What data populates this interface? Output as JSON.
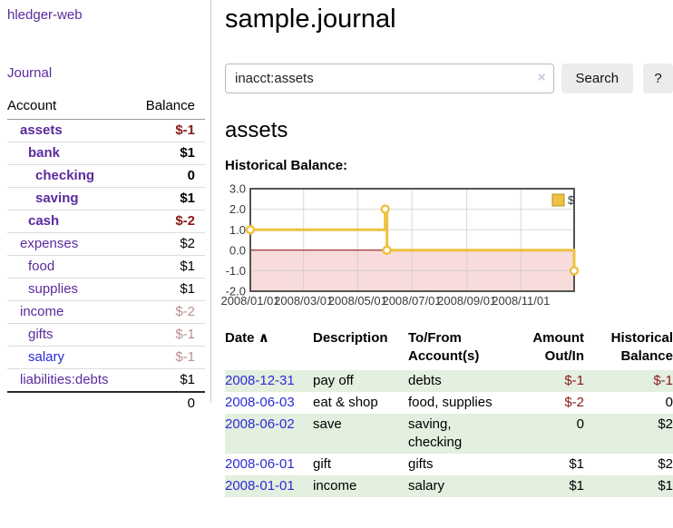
{
  "app": {
    "title": "hledger-web",
    "nav_journal": "Journal"
  },
  "sidebar": {
    "columns": {
      "account": "Account",
      "balance": "Balance"
    },
    "accounts": [
      {
        "name": "assets",
        "balance": "$-1",
        "level": 1,
        "bold": true
      },
      {
        "name": "bank",
        "balance": "$1",
        "level": 2,
        "bold": true
      },
      {
        "name": "checking",
        "balance": "0",
        "level": 3,
        "bold": true
      },
      {
        "name": "saving",
        "balance": "$1",
        "level": 3,
        "bold": true
      },
      {
        "name": "cash",
        "balance": "$-2",
        "level": 2,
        "bold": true
      },
      {
        "name": "expenses",
        "balance": "$2",
        "level": 1,
        "bold": false
      },
      {
        "name": "food",
        "balance": "$1",
        "level": 2,
        "bold": false
      },
      {
        "name": "supplies",
        "balance": "$1",
        "level": 2,
        "bold": false
      },
      {
        "name": "income",
        "balance": "$-2",
        "level": 1,
        "bold": false
      },
      {
        "name": "gifts",
        "balance": "$-1",
        "level": 2,
        "bold": false
      },
      {
        "name": "salary",
        "balance": "$-1",
        "level": 2,
        "bold": false,
        "link_color": "blue"
      },
      {
        "name": "liabilities:debts",
        "balance": "$1",
        "level": 1,
        "bold": false
      }
    ],
    "total": "0"
  },
  "header": {
    "title": "sample.journal"
  },
  "search": {
    "query": "inacct:assets",
    "clear_icon": "×",
    "button": "Search",
    "help_button": "?"
  },
  "account_page": {
    "title": "assets",
    "chart_label": "Historical Balance:"
  },
  "chart_data": {
    "type": "line",
    "step": true,
    "title": "Historical Balance",
    "xlim": [
      "2008-01-01",
      "2008-12-31"
    ],
    "ylim": [
      -2,
      3
    ],
    "x_ticks": [
      "2008/01/01",
      "2008/03/01",
      "2008/05/01",
      "2008/07/01",
      "2008/09/01",
      "2008/11/01"
    ],
    "y_ticks": [
      "3.0",
      "2.0",
      "1.0",
      "0.0",
      "-1.0",
      "-2.0"
    ],
    "series": [
      {
        "name": "$",
        "color": "#edc240",
        "points": [
          [
            "2008-01-01",
            1
          ],
          [
            "2008-06-01",
            2
          ],
          [
            "2008-06-03",
            0
          ],
          [
            "2008-12-31",
            -1
          ]
        ]
      }
    ],
    "legend_position": "top-right",
    "grid": true,
    "negative_region_fill": "#f8dbdb",
    "zero_line_color": "#8b0000"
  },
  "register": {
    "columns": {
      "date": "Date",
      "description": "Description",
      "accounts": "To/From Account(s)",
      "amount": "Amount Out/In",
      "balance": "Historical Balance"
    },
    "sort_indicator": "∧",
    "rows": [
      {
        "date": "2008-12-31",
        "description": "pay off",
        "accounts": "debts",
        "amount": "$-1",
        "balance": "$-1"
      },
      {
        "date": "2008-06-03",
        "description": "eat & shop",
        "accounts": "food, supplies",
        "amount": "$-2",
        "balance": "0"
      },
      {
        "date": "2008-06-02",
        "description": "save",
        "accounts": "saving, checking",
        "amount": "0",
        "balance": "$2"
      },
      {
        "date": "2008-06-01",
        "description": "gift",
        "accounts": "gifts",
        "amount": "$1",
        "balance": "$2"
      },
      {
        "date": "2008-01-01",
        "description": "income",
        "accounts": "salary",
        "amount": "$1",
        "balance": "$1"
      }
    ]
  }
}
